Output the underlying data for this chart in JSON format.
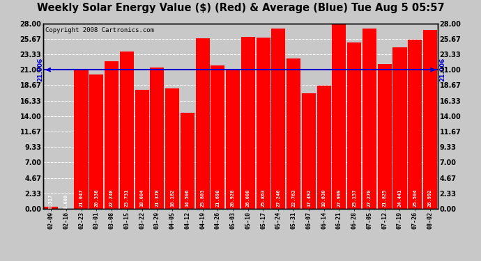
{
  "title": "Weekly Solar Energy Value ($) (Red) & Average (Blue) Tue Aug 5 05:57",
  "copyright": "Copyright 2008 Cartronics.com",
  "average": 21.006,
  "average_label": "21.006",
  "categories": [
    "02-09",
    "02-16",
    "02-23",
    "03-01",
    "03-08",
    "03-15",
    "03-22",
    "03-29",
    "04-05",
    "04-12",
    "04-19",
    "04-26",
    "05-03",
    "05-10",
    "05-17",
    "05-24",
    "05-31",
    "06-07",
    "06-14",
    "06-21",
    "06-28",
    "07-05",
    "07-12",
    "07-19",
    "07-26",
    "08-02"
  ],
  "values": [
    0.317,
    0.0,
    21.047,
    20.338,
    22.248,
    23.731,
    18.004,
    21.378,
    18.182,
    14.506,
    25.803,
    21.698,
    20.928,
    26.0,
    25.863,
    27.246,
    22.763,
    17.492,
    18.63,
    27.999,
    25.157,
    27.27,
    21.825,
    24.441,
    25.504,
    26.992
  ],
  "bar_color": "#ff0000",
  "avg_line_color": "#0000cc",
  "background_color": "#c8c8c8",
  "plot_bg_color": "#c8c8c8",
  "grid_color": "#ffffff",
  "ylim": [
    0,
    28.0
  ],
  "yticks": [
    0.0,
    2.33,
    4.67,
    7.0,
    9.33,
    11.67,
    14.0,
    16.33,
    18.67,
    21.0,
    23.33,
    25.67,
    28.0
  ],
  "ytick_labels": [
    "0.00",
    "2.33",
    "4.67",
    "7.00",
    "9.33",
    "11.67",
    "14.00",
    "16.33",
    "18.67",
    "21.00",
    "23.33",
    "25.67",
    "28.00"
  ],
  "title_fontsize": 10.5,
  "copyright_fontsize": 6.5,
  "bar_value_fontsize": 5.0,
  "avg_fontsize": 6.5
}
